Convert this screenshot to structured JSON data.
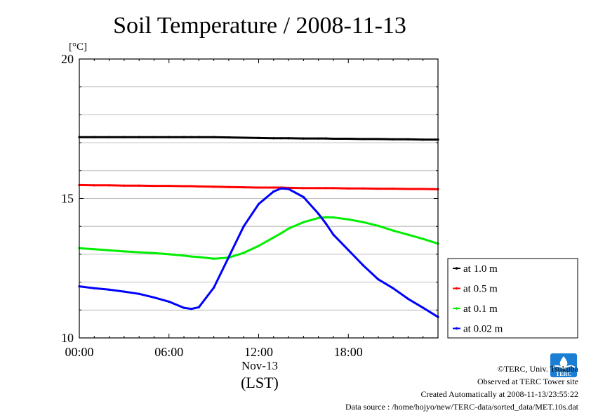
{
  "chart_data": {
    "type": "line",
    "title": "Soil Temperature / 2008-11-13",
    "ylabel": "[°C]",
    "xlabel": "(LST)",
    "date_label": "Nov-13",
    "ylim": [
      10,
      20
    ],
    "y_ticks": [
      10,
      15,
      20
    ],
    "xlim": [
      0,
      24
    ],
    "x_ticks": [
      0,
      6,
      12,
      18
    ],
    "x_tick_labels": [
      "00:00",
      "06:00",
      "12:00",
      "18:00"
    ],
    "grid": true,
    "legend_position": "right",
    "x": [
      0,
      1,
      2,
      3,
      4,
      5,
      6,
      7,
      7.5,
      8,
      9,
      10,
      11,
      12,
      13,
      13.5,
      14,
      15,
      16,
      16.5,
      17,
      18,
      19,
      20,
      21,
      22,
      23,
      24
    ],
    "series": [
      {
        "name": "at 1.0 m",
        "color": "#000000",
        "values": [
          17.2,
          17.2,
          17.2,
          17.2,
          17.2,
          17.2,
          17.2,
          17.2,
          17.2,
          17.2,
          17.2,
          17.19,
          17.18,
          17.17,
          17.16,
          17.16,
          17.16,
          17.15,
          17.15,
          17.15,
          17.14,
          17.14,
          17.13,
          17.13,
          17.12,
          17.12,
          17.11,
          17.11
        ]
      },
      {
        "name": "at 0.5 m",
        "color": "#ff0000",
        "values": [
          15.48,
          15.47,
          15.47,
          15.46,
          15.46,
          15.45,
          15.45,
          15.44,
          15.44,
          15.43,
          15.42,
          15.41,
          15.4,
          15.39,
          15.39,
          15.39,
          15.38,
          15.37,
          15.37,
          15.37,
          15.37,
          15.36,
          15.36,
          15.35,
          15.35,
          15.34,
          15.34,
          15.33
        ]
      },
      {
        "name": "at 0.1 m",
        "color": "#00ee00",
        "values": [
          13.22,
          13.18,
          13.14,
          13.1,
          13.07,
          13.04,
          13.0,
          12.95,
          12.92,
          12.9,
          12.84,
          12.88,
          13.05,
          13.3,
          13.6,
          13.75,
          13.92,
          14.15,
          14.3,
          14.33,
          14.32,
          14.25,
          14.15,
          14.02,
          13.85,
          13.7,
          13.55,
          13.38
        ]
      },
      {
        "name": "at 0.02 m",
        "color": "#0000ff",
        "values": [
          11.85,
          11.78,
          11.73,
          11.66,
          11.58,
          11.45,
          11.3,
          11.08,
          11.04,
          11.1,
          11.8,
          12.9,
          14.0,
          14.8,
          15.25,
          15.36,
          15.34,
          15.05,
          14.45,
          14.1,
          13.7,
          13.15,
          12.6,
          12.1,
          11.78,
          11.4,
          11.08,
          10.75
        ]
      }
    ]
  },
  "credits": {
    "copyright": "©TERC, Univ. Tsukuba",
    "site": "Observed at TERC Tower site",
    "created": "Created Automatically at 2008-11-13/23:55:22",
    "source": "Data source : /home/hojyo/new/TERC-data/sorted_data/MET.10s.dat",
    "logo_text": "TERC",
    "logo_color": "#1a7fd4"
  }
}
